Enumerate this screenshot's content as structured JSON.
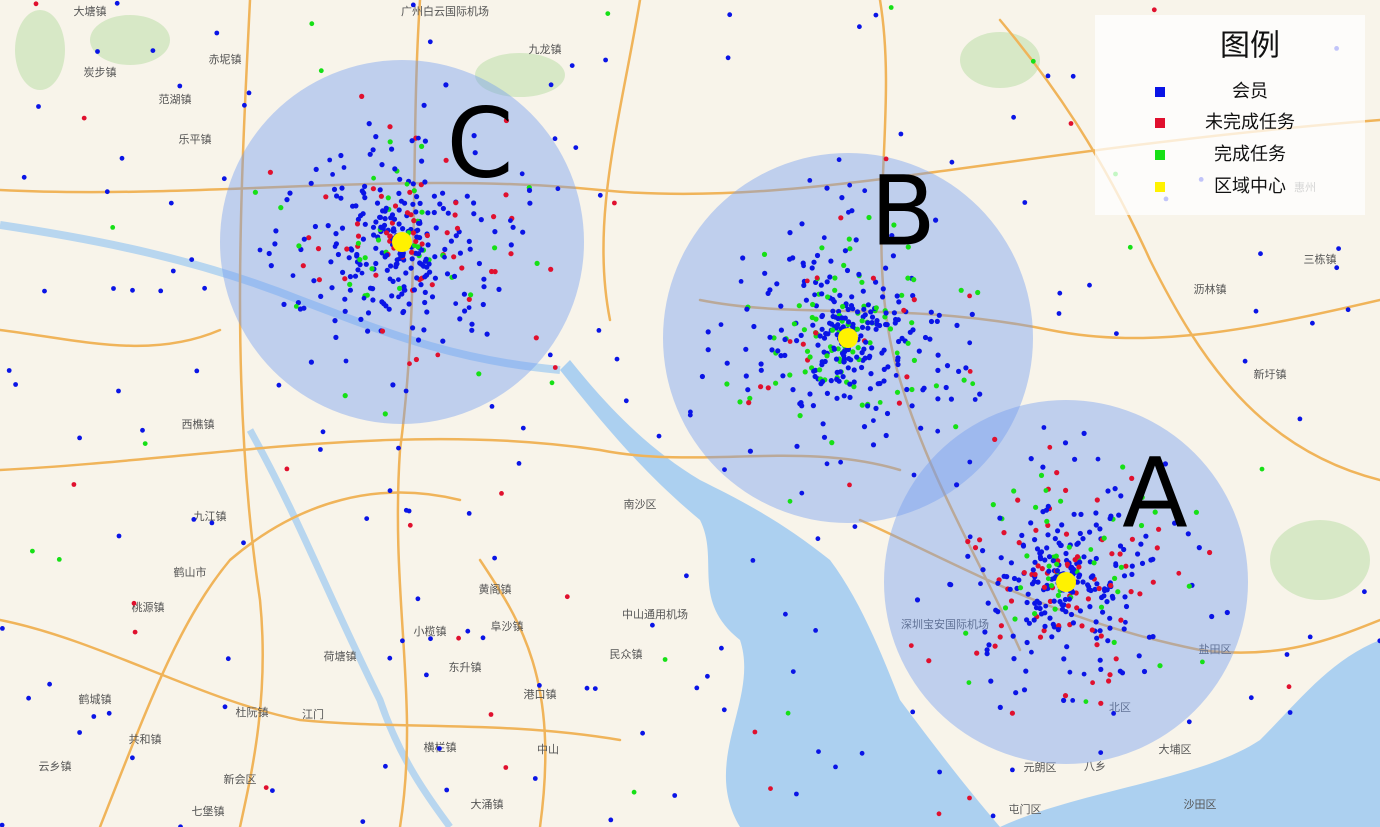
{
  "legend": {
    "title": "图例",
    "items": [
      {
        "label": "会员",
        "color": "#0a14e6"
      },
      {
        "label": "未完成任务",
        "color": "#e0102e"
      },
      {
        "label": "完成任务",
        "color": "#16e016"
      },
      {
        "label": "区域中心",
        "color": "#fff200"
      }
    ]
  },
  "regions": [
    {
      "label": "A"
    },
    {
      "label": "B"
    },
    {
      "label": "C"
    }
  ],
  "places": [
    "大塘镇",
    "赤坭镇",
    "广州白云国际机场",
    "九龙镇",
    "炭步镇",
    "范湖镇",
    "乐平镇",
    "西樵镇",
    "九江镇",
    "鹤山市",
    "桃源镇",
    "江门",
    "中山",
    "东升镇",
    "港口镇",
    "横栏镇",
    "民众镇",
    "南沙区",
    "黄阁镇",
    "小榄镇",
    "阜沙镇",
    "荷塘镇",
    "杜阮镇",
    "共和镇",
    "云乡镇",
    "鹤城镇",
    "新会区",
    "大涌镇",
    "七堡镇",
    "中山通用机场",
    "深圳宝安国际机场",
    "惠州",
    "新圩镇",
    "三栋镇",
    "沥林镇",
    "盐田区",
    "元朗区",
    "大埔区",
    "北区",
    "八乡",
    "沙田区",
    "屯门区"
  ]
}
